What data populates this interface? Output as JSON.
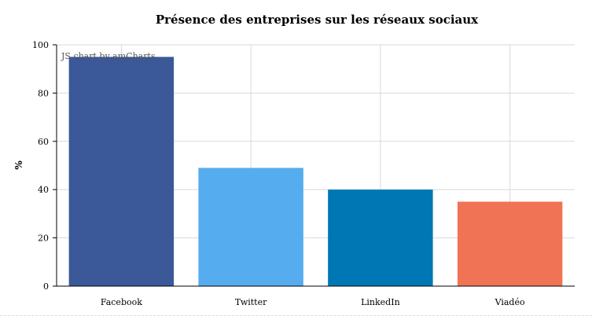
{
  "chart_data": {
    "type": "bar",
    "title": "Présence des entreprises sur les réseaux sociaux",
    "ylabel": "%",
    "xlabel": "",
    "categories": [
      "Facebook",
      "Twitter",
      "LinkedIn",
      "Viadéo"
    ],
    "values": [
      95,
      49,
      40,
      35
    ],
    "colors": [
      "#3b5998",
      "#55acee",
      "#0077b5",
      "#f07355"
    ],
    "ylim": [
      0,
      100
    ],
    "yticks": [
      0,
      20,
      40,
      60,
      80,
      100
    ],
    "grid": true,
    "legend": "none"
  },
  "credit_text": "JS chart by amCharts"
}
